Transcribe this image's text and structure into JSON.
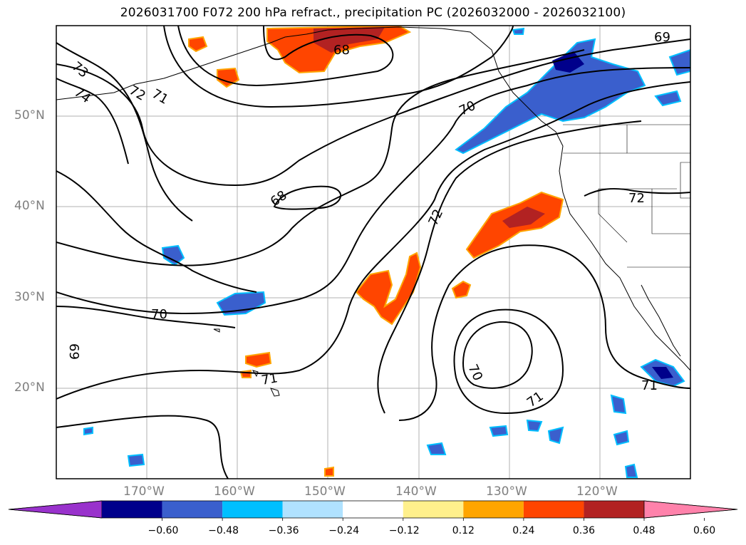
{
  "title": "2026031700 F072 200 hPa refract., precipitation PC (2026032000 - 2026032100)",
  "lat_labels": [
    "50°N",
    "40°N",
    "30°N",
    "20°N"
  ],
  "lon_labels": [
    "170°W",
    "160°W",
    "150°W",
    "140°W",
    "130°W",
    "120°W"
  ],
  "contour_labels": [
    {
      "text": "73"
    },
    {
      "text": "74"
    },
    {
      "text": "72"
    },
    {
      "text": "71"
    },
    {
      "text": "68"
    },
    {
      "text": "69"
    },
    {
      "text": "70"
    },
    {
      "text": "68"
    },
    {
      "text": "72"
    },
    {
      "text": "72"
    },
    {
      "text": "70"
    },
    {
      "text": "69"
    },
    {
      "text": "71"
    },
    {
      "text": "70"
    },
    {
      "text": "71"
    },
    {
      "text": "71"
    }
  ],
  "colorbar": {
    "ticks": [
      "−0.60",
      "−0.48",
      "−0.36",
      "−0.24",
      "−0.12",
      "0.12",
      "0.24",
      "0.36",
      "0.48",
      "0.60"
    ],
    "colors": [
      "#9932cc",
      "#00008b",
      "#3a5fcd",
      "#00bfff",
      "#b0e2ff",
      "#ffffff",
      "#fff08c",
      "#ffa500",
      "#ff4500",
      "#b22222",
      "#ff82ab"
    ]
  }
}
